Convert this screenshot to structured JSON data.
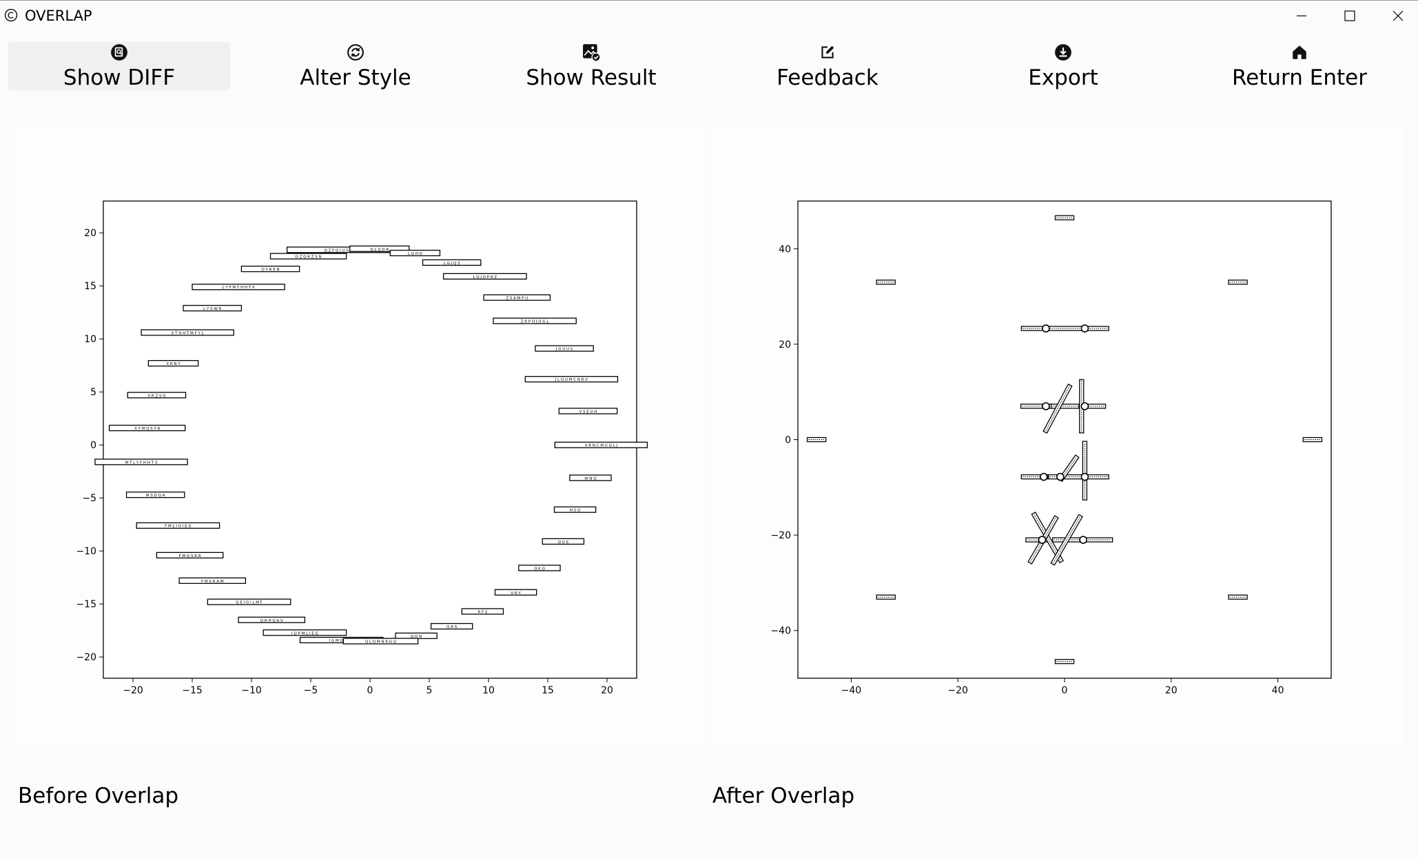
{
  "window": {
    "title": "OVERLAP"
  },
  "toolbar": {
    "buttons": [
      {
        "label": "Show DIFF",
        "icon": "document-search-icon"
      },
      {
        "label": "Alter Style",
        "icon": "refresh-circle-icon"
      },
      {
        "label": "Show Result",
        "icon": "image-check-icon"
      },
      {
        "label": "Feedback",
        "icon": "edit-icon"
      },
      {
        "label": "Export",
        "icon": "download-icon"
      },
      {
        "label": "Return Enter",
        "icon": "home-icon"
      }
    ]
  },
  "panels": {
    "before": {
      "caption": "Before Overlap"
    },
    "after": {
      "caption": "After Overlap"
    }
  },
  "chart_data": [
    {
      "type": "scatter",
      "title": "",
      "xlabel": "",
      "ylabel": "",
      "xlim": [
        -22.5,
        22.5
      ],
      "ylim": [
        -22,
        23
      ],
      "xticks": [
        -20,
        -15,
        -10,
        -5,
        0,
        5,
        10,
        15,
        20
      ],
      "yticks": [
        -20,
        -15,
        -10,
        -5,
        0,
        5,
        10,
        15,
        20
      ],
      "grid": false,
      "marker": "text-box",
      "points": [
        {
          "x": -2.5,
          "y": 18.4,
          "w": 9.0,
          "label": "Q Z F Q J U G T N"
        },
        {
          "x": 0.8,
          "y": 18.5,
          "w": 5.0,
          "label": "Q L Q D R"
        },
        {
          "x": 3.8,
          "y": 18.1,
          "w": 4.2,
          "label": "L Q H D"
        },
        {
          "x": -5.2,
          "y": 17.8,
          "w": 6.4,
          "label": "O Z Q R Z S N"
        },
        {
          "x": 6.9,
          "y": 17.2,
          "w": 4.9,
          "label": "L G J Q S"
        },
        {
          "x": -8.4,
          "y": 16.6,
          "w": 4.9,
          "label": "O Y R E N"
        },
        {
          "x": 9.7,
          "y": 15.9,
          "w": 7.0,
          "label": "L Q J O P R Z"
        },
        {
          "x": -11.1,
          "y": 14.9,
          "w": 7.8,
          "label": "L Y F M T H H T X"
        },
        {
          "x": 12.4,
          "y": 13.9,
          "w": 5.6,
          "label": "Z S A M P U"
        },
        {
          "x": -13.3,
          "y": 12.9,
          "w": 4.9,
          "label": "L Y S W R"
        },
        {
          "x": 13.9,
          "y": 11.7,
          "w": 7.0,
          "label": "Z R P O J O G L"
        },
        {
          "x": -15.4,
          "y": 10.6,
          "w": 7.8,
          "label": "X T H H T M F Y L"
        },
        {
          "x": 16.4,
          "y": 9.1,
          "w": 4.9,
          "label": "J G U U S"
        },
        {
          "x": -16.6,
          "y": 7.7,
          "w": 4.2,
          "label": "X R N Y"
        },
        {
          "x": 17.0,
          "y": 6.2,
          "w": 7.8,
          "label": "J L G U M C N R V"
        },
        {
          "x": -18.0,
          "y": 4.7,
          "w": 4.9,
          "label": "X R Z S G"
        },
        {
          "x": 18.4,
          "y": 3.2,
          "w": 4.9,
          "label": "V S E U H"
        },
        {
          "x": -18.8,
          "y": 1.6,
          "w": 6.4,
          "label": "X Y M Q S Y R"
        },
        {
          "x": 19.5,
          "y": 0.0,
          "w": 7.8,
          "label": "V R N C M U Q L J"
        },
        {
          "x": -19.3,
          "y": -1.6,
          "w": 7.8,
          "label": "M T L Y F H H T X"
        },
        {
          "x": 18.6,
          "y": -3.1,
          "w": 3.5,
          "label": "W N Q"
        },
        {
          "x": -18.1,
          "y": -4.7,
          "w": 4.9,
          "label": "M S D Q A"
        },
        {
          "x": 17.3,
          "y": -6.1,
          "w": 3.5,
          "label": "N S Q"
        },
        {
          "x": -16.2,
          "y": -7.6,
          "w": 7.0,
          "label": "F M L I G I E G"
        },
        {
          "x": 16.3,
          "y": -9.1,
          "w": 3.5,
          "label": "Q U S"
        },
        {
          "x": -15.2,
          "y": -10.4,
          "w": 5.6,
          "label": "F M Q S R R"
        },
        {
          "x": 14.3,
          "y": -11.6,
          "w": 3.5,
          "label": "Q K Q"
        },
        {
          "x": -13.3,
          "y": -12.8,
          "w": 5.6,
          "label": "F M S R A M"
        },
        {
          "x": 12.3,
          "y": -13.9,
          "w": 3.5,
          "label": "V R Y"
        },
        {
          "x": -10.2,
          "y": -14.8,
          "w": 7.0,
          "label": "Q E I G I L M F"
        },
        {
          "x": 9.5,
          "y": -15.7,
          "w": 3.5,
          "label": "R F S"
        },
        {
          "x": -8.3,
          "y": -16.5,
          "w": 5.6,
          "label": "Q R H Q A V"
        },
        {
          "x": 6.9,
          "y": -17.1,
          "w": 3.5,
          "label": "Q A S"
        },
        {
          "x": -5.5,
          "y": -17.7,
          "w": 7.0,
          "label": "I Q P M L I E G"
        },
        {
          "x": 3.9,
          "y": -18.0,
          "w": 3.5,
          "label": "Q O N"
        },
        {
          "x": -2.4,
          "y": -18.4,
          "w": 7.0,
          "label": "I G M Q E R S"
        },
        {
          "x": 0.9,
          "y": -18.5,
          "w": 6.3,
          "label": "Q L Q M N R G Q"
        }
      ]
    },
    {
      "type": "scatter",
      "title": "",
      "xlabel": "",
      "ylabel": "",
      "xlim": [
        -50,
        50
      ],
      "ylim": [
        -50,
        50
      ],
      "xticks": [
        -40,
        -20,
        0,
        20,
        40
      ],
      "yticks": [
        -40,
        -20,
        0,
        20,
        40
      ],
      "grid": false,
      "marker": "text-box",
      "points": [
        {
          "x": 0,
          "y": 46.5,
          "w": 3.5,
          "angle": 0
        },
        {
          "x": -33.5,
          "y": 33.0,
          "w": 3.5,
          "angle": 0
        },
        {
          "x": 32.5,
          "y": 33.0,
          "w": 3.5,
          "angle": 0
        },
        {
          "x": -46.5,
          "y": 0,
          "w": 3.5,
          "angle": 0
        },
        {
          "x": 46.5,
          "y": 0,
          "w": 3.5,
          "angle": 0
        },
        {
          "x": -33.5,
          "y": -33.0,
          "w": 3.5,
          "angle": 0
        },
        {
          "x": 32.5,
          "y": -33.0,
          "w": 3.5,
          "angle": 0
        },
        {
          "x": 0,
          "y": -46.5,
          "w": 3.5,
          "angle": 0
        },
        {
          "x": -5.6,
          "y": 23.3,
          "w": 5.0,
          "angle": 0
        },
        {
          "x": 0.5,
          "y": 23.3,
          "w": 7.0,
          "angle": 0
        },
        {
          "x": 5.8,
          "y": 23.3,
          "w": 5.0,
          "angle": 0
        },
        {
          "x": -5.2,
          "y": 7.0,
          "w": 6.0,
          "angle": 0
        },
        {
          "x": 0.5,
          "y": 7.0,
          "w": 6.0,
          "angle": 0
        },
        {
          "x": 5.2,
          "y": 7.0,
          "w": 5.0,
          "angle": 0
        },
        {
          "x": -1.3,
          "y": 6.5,
          "w": 10.0,
          "angle": 62
        },
        {
          "x": 3.2,
          "y": 7.0,
          "w": 10.0,
          "angle": 90
        },
        {
          "x": -5.6,
          "y": -7.8,
          "w": 5.0,
          "angle": 0
        },
        {
          "x": 0.5,
          "y": -7.8,
          "w": 7.0,
          "angle": 0
        },
        {
          "x": 5.8,
          "y": -7.8,
          "w": 5.0,
          "angle": 0
        },
        {
          "x": 0.8,
          "y": -6.0,
          "w": 5.5,
          "angle": 55
        },
        {
          "x": 3.8,
          "y": -6.5,
          "w": 11.0,
          "angle": 90
        },
        {
          "x": -5.0,
          "y": -21.0,
          "w": 4.5,
          "angle": 0
        },
        {
          "x": 0.5,
          "y": -21.0,
          "w": 5.5,
          "angle": 0
        },
        {
          "x": 6.0,
          "y": -21.0,
          "w": 6.0,
          "angle": 0
        },
        {
          "x": -3.2,
          "y": -20.5,
          "w": 10.5,
          "angle": -60
        },
        {
          "x": -4.0,
          "y": -21.0,
          "w": 10.0,
          "angle": 60
        },
        {
          "x": 0.4,
          "y": -21.0,
          "w": 10.5,
          "angle": 60
        }
      ],
      "markers": [
        {
          "x": -3.5,
          "y": 23.3
        },
        {
          "x": 3.8,
          "y": 23.3
        },
        {
          "x": -3.5,
          "y": 7.0
        },
        {
          "x": 3.8,
          "y": 7.0
        },
        {
          "x": -3.9,
          "y": -7.8
        },
        {
          "x": -0.8,
          "y": -7.8
        },
        {
          "x": 3.8,
          "y": -7.8
        },
        {
          "x": -4.2,
          "y": -21.0
        },
        {
          "x": 3.5,
          "y": -21.0
        }
      ]
    }
  ]
}
